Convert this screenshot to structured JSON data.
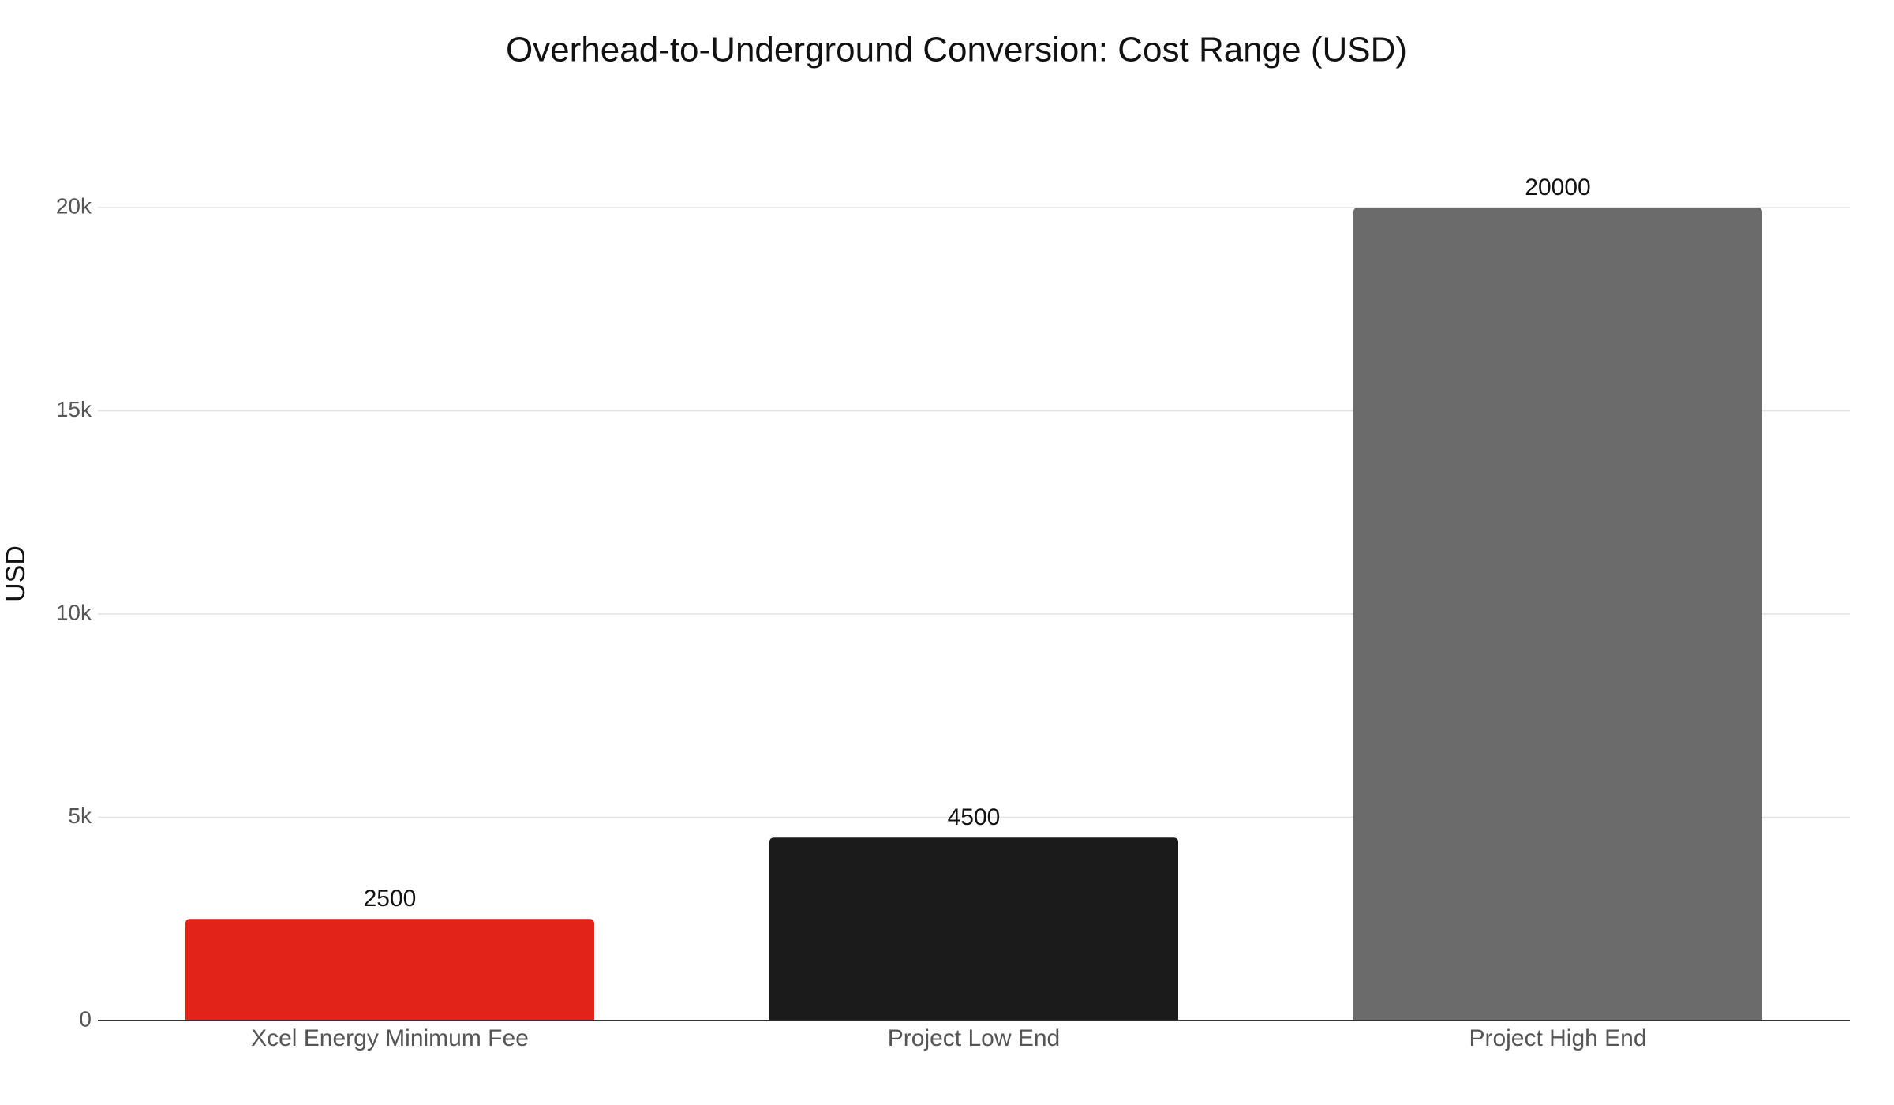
{
  "chart_data": {
    "type": "bar",
    "title": "Overhead-to-Underground Conversion: Cost Range (USD)",
    "y_label": "USD",
    "categories": [
      "Xcel Energy Minimum Fee",
      "Project Low End",
      "Project High End"
    ],
    "values": [
      2500,
      4500,
      20000
    ],
    "colors": [
      "#e2231a",
      "#1b1b1b",
      "#6b6b6b"
    ],
    "ylim": [
      0,
      20000
    ],
    "yticks": [
      0,
      {
        "value": 5000,
        "label": "5k"
      },
      {
        "value": 10000,
        "label": "10k"
      },
      {
        "value": 15000,
        "label": "15k"
      },
      {
        "value": 20000,
        "label": "20k"
      }
    ],
    "grid": true
  }
}
